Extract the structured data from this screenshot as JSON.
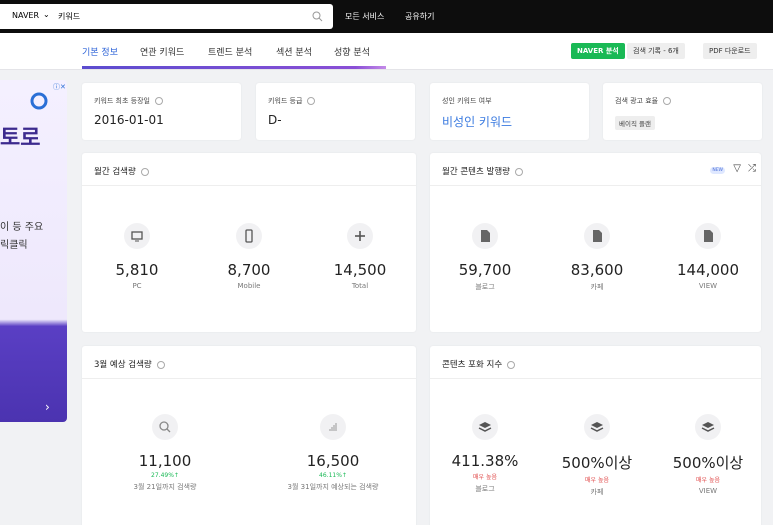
{
  "topbar": {
    "engine": "NAVER",
    "query": "키워드",
    "menu": [
      "모든 서비스",
      "공유하기"
    ]
  },
  "tabs": [
    "기본 정보",
    "연관 키워드",
    "트렌드 분석",
    "섹션 분석",
    "성향 분석"
  ],
  "actions": [
    "NAVER 분석",
    "검색 기록 - 6개",
    "PDF 다운로드"
  ],
  "ad": {
    "lines": [
      "토로",
      "이 등 주요",
      "릭클릭"
    ]
  },
  "summary": [
    {
      "label": "키워드 최초 등장일",
      "value": "2016-01-01"
    },
    {
      "label": "키워드 등급",
      "value": "D-"
    },
    {
      "label": "성인 키워드 여부",
      "value": "비성인 키워드"
    },
    {
      "label": "검색 광고 효율",
      "value": "베이직 플랜"
    }
  ],
  "monthly_search": {
    "title": "월간 검색량",
    "items": [
      {
        "value": "5,810",
        "label": "PC"
      },
      {
        "value": "8,700",
        "label": "Mobile"
      },
      {
        "value": "14,500",
        "label": "Total"
      }
    ]
  },
  "monthly_content": {
    "title": "월간 콘텐츠 발행량",
    "badge": "NEW",
    "items": [
      {
        "value": "59,700",
        "label": "블로그"
      },
      {
        "value": "83,600",
        "label": "카페"
      },
      {
        "value": "144,000",
        "label": "VIEW"
      }
    ]
  },
  "forecast": {
    "title": "3월 예상 검색량",
    "items": [
      {
        "value": "11,100",
        "change": "27.49%↑",
        "label": "3월 21일까지 검색량"
      },
      {
        "value": "16,500",
        "change": "46.11%↑",
        "label": "3월 31일까지 예상되는 검색량"
      }
    ]
  },
  "saturation": {
    "title": "콘텐츠 포화 지수",
    "items": [
      {
        "value": "411.38%",
        "level": "매우 높음",
        "label": "블로그"
      },
      {
        "value": "500%이상",
        "level": "매우 높음",
        "label": "카페"
      },
      {
        "value": "500%이상",
        "level": "매우 높음",
        "label": "VIEW"
      }
    ]
  }
}
